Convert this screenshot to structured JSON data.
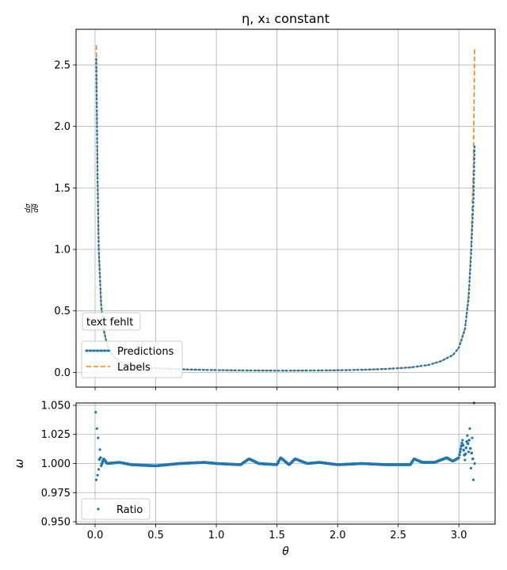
{
  "colors": {
    "predictions": "#1f77b4",
    "labels": "#ff7f0e",
    "ratio": "#1f77b4",
    "grid": "#b0b0b0",
    "frame": "#000000"
  },
  "chart_data": [
    {
      "type": "line",
      "title": "η, x₁ constant",
      "xlabel": "",
      "ylabel": "dσ/dθ",
      "ylabel_num": "dσ",
      "ylabel_den": "dθ",
      "xlim": [
        -0.157,
        3.299
      ],
      "ylim": [
        -0.12,
        2.79
      ],
      "xticks": [
        0.0,
        0.5,
        1.0,
        1.5,
        2.0,
        2.5,
        3.0
      ],
      "xtick_labels": [
        "0.0",
        "0.5",
        "1.0",
        "1.5",
        "2.0",
        "2.5",
        "3.0"
      ],
      "yticks": [
        0.0,
        0.5,
        1.0,
        1.5,
        2.0,
        2.5
      ],
      "ytick_labels": [
        "0.0",
        "0.5",
        "1.0",
        "1.5",
        "2.0",
        "2.5"
      ],
      "grid": true,
      "legend": {
        "title": "text fehlt",
        "placement": "lower-left",
        "entries": [
          "Predictions",
          "Labels"
        ]
      },
      "series": [
        {
          "name": "Predictions",
          "style": "dotted",
          "x": [
            0.01,
            0.02,
            0.03,
            0.05,
            0.07,
            0.1,
            0.15,
            0.2,
            0.3,
            0.4,
            0.5,
            0.7,
            0.9,
            1.1,
            1.3,
            1.57,
            1.8,
            2.0,
            2.2,
            2.4,
            2.6,
            2.75,
            2.85,
            2.95,
            3.0,
            3.05,
            3.08,
            3.1,
            3.12,
            3.13
          ],
          "values": [
            2.55,
            1.6,
            1.0,
            0.55,
            0.35,
            0.22,
            0.13,
            0.09,
            0.055,
            0.04,
            0.033,
            0.025,
            0.02,
            0.017,
            0.015,
            0.014,
            0.015,
            0.017,
            0.021,
            0.028,
            0.04,
            0.06,
            0.09,
            0.14,
            0.2,
            0.35,
            0.6,
            0.95,
            1.4,
            1.85
          ]
        },
        {
          "name": "Labels",
          "style": "dashed",
          "x": [
            0.01,
            0.02,
            0.03,
            0.05,
            0.07,
            0.1,
            0.15,
            0.2,
            0.3,
            0.4,
            0.5,
            0.7,
            0.9,
            1.1,
            1.3,
            1.57,
            1.8,
            2.0,
            2.2,
            2.4,
            2.6,
            2.75,
            2.85,
            2.95,
            3.0,
            3.05,
            3.08,
            3.1,
            3.12,
            3.13
          ],
          "values": [
            2.66,
            1.62,
            1.01,
            0.56,
            0.35,
            0.22,
            0.13,
            0.09,
            0.055,
            0.04,
            0.033,
            0.025,
            0.02,
            0.017,
            0.015,
            0.014,
            0.015,
            0.017,
            0.021,
            0.028,
            0.04,
            0.06,
            0.09,
            0.14,
            0.2,
            0.36,
            0.63,
            1.0,
            1.7,
            2.64
          ]
        }
      ]
    },
    {
      "type": "scatter",
      "title": "",
      "xlabel": "θ",
      "ylabel": "ω",
      "xlim": [
        -0.157,
        3.299
      ],
      "ylim": [
        0.948,
        1.052
      ],
      "xticks": [
        0.0,
        0.5,
        1.0,
        1.5,
        2.0,
        2.5,
        3.0
      ],
      "xtick_labels": [
        "0.0",
        "0.5",
        "1.0",
        "1.5",
        "2.0",
        "2.5",
        "3.0"
      ],
      "yticks": [
        0.95,
        0.975,
        1.0,
        1.025,
        1.05
      ],
      "ytick_labels": [
        "0.950",
        "0.975",
        "1.000",
        "1.025",
        "1.050"
      ],
      "grid": true,
      "legend": {
        "placement": "lower-left",
        "entries": [
          "Ratio"
        ]
      },
      "series": [
        {
          "name": "Ratio",
          "x": [
            0.005,
            0.01,
            0.015,
            0.02,
            0.025,
            0.03,
            0.04,
            0.05,
            0.07,
            0.1,
            0.2,
            0.3,
            0.5,
            0.7,
            0.9,
            1.0,
            1.2,
            1.27,
            1.35,
            1.5,
            1.53,
            1.6,
            1.65,
            1.75,
            1.85,
            2.0,
            2.2,
            2.4,
            2.6,
            2.63,
            2.7,
            2.8,
            2.9,
            2.95,
            3.0,
            3.03,
            3.05,
            3.07,
            3.08,
            3.09,
            3.1,
            3.11,
            3.12,
            3.125,
            3.13
          ],
          "values": [
            1.044,
            0.986,
            1.03,
            0.99,
            1.022,
            0.995,
            1.012,
            0.998,
            1.004,
            1.0,
            1.001,
            0.999,
            0.998,
            1.0,
            1.001,
            1.0,
            0.999,
            1.004,
            1.0,
            0.999,
            1.005,
            0.999,
            1.004,
            1.0,
            1.001,
            0.999,
            1.0,
            0.999,
            0.999,
            1.004,
            1.001,
            1.001,
            1.005,
            1.002,
            1.005,
            1.02,
            1.003,
            1.024,
            1.01,
            1.03,
            0.996,
            1.022,
            0.986,
            1.052,
            1.0
          ]
        }
      ]
    }
  ]
}
